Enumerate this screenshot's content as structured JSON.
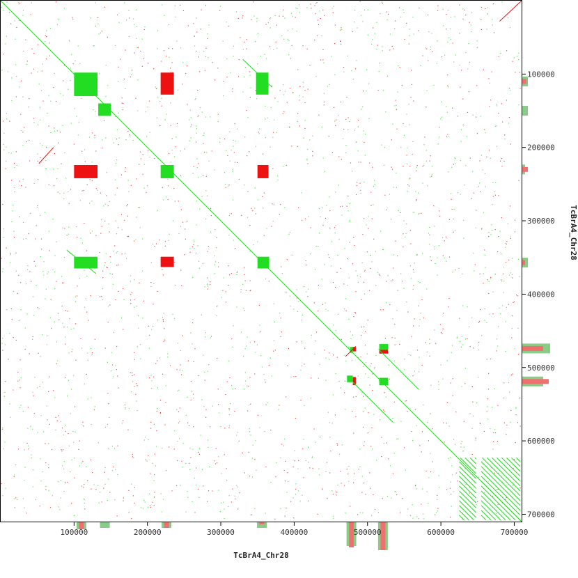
{
  "chart_data": {
    "type": "scatter",
    "title": "",
    "xlabel": "TcBrA4_Chr28",
    "ylabel": "TcBrA4_Chr28",
    "xlim": [
      0,
      710000
    ],
    "ylim": [
      0,
      710000
    ],
    "y_inverted": true,
    "x_ticks": [
      100000,
      200000,
      300000,
      400000,
      500000,
      600000,
      700000
    ],
    "y_ticks": [
      100000,
      200000,
      300000,
      400000,
      500000,
      600000,
      700000
    ],
    "x_tick_labels": [
      "100000",
      "200000",
      "300000",
      "400000",
      "500000",
      "600000",
      "700000"
    ],
    "y_tick_labels": [
      "100000",
      "200000",
      "300000",
      "400000",
      "500000",
      "600000",
      "700000"
    ],
    "grid": false,
    "legend": "none",
    "colors": {
      "forward": "#22dd22",
      "reverse": "#ee1111",
      "forward_light": "#88cc88",
      "reverse_light": "#f07070",
      "axis": "#000000"
    },
    "series": [
      {
        "direction": "forward",
        "diagonal_lines": [
          {
            "x": [
              0,
              710000
            ],
            "y": [
              0,
              710000
            ]
          },
          {
            "x": [
              90000,
              130000
            ],
            "y": [
              340000,
              372000
            ]
          },
          {
            "x": [
              330000,
              370000
            ],
            "y": [
              80000,
              118000
            ]
          },
          {
            "x": [
              515000,
              570000
            ],
            "y": [
              475000,
              530000
            ]
          },
          {
            "x": [
              480000,
              535000
            ],
            "y": [
              520000,
              575000
            ]
          }
        ],
        "blocks": [
          {
            "x": [
              100000,
              132000
            ],
            "y": [
              98000,
              130000
            ]
          },
          {
            "x": [
              133000,
              150000
            ],
            "y": [
              140000,
              157000
            ]
          },
          {
            "x": [
              218000,
              236000
            ],
            "y": [
              224000,
              242000
            ]
          },
          {
            "x": [
              348000,
              365000
            ],
            "y": [
              98000,
              128000
            ]
          },
          {
            "x": [
              100000,
              132000
            ],
            "y": [
              349000,
              365000
            ]
          },
          {
            "x": [
              350000,
              366000
            ],
            "y": [
              349000,
              365000
            ]
          },
          {
            "x": [
              516000,
              528000
            ],
            "y": [
              468000,
              476000
            ]
          },
          {
            "x": [
              472000,
              480000
            ],
            "y": [
              511000,
              520000
            ]
          },
          {
            "x": [
              516000,
              528000
            ],
            "y": [
              514000,
              524000
            ]
          },
          {
            "x": [
              476000,
              480000
            ],
            "y": [
              472000,
              480000
            ]
          }
        ],
        "hatched_regions": [
          {
            "x": [
              625000,
              648000
            ],
            "y": [
              623000,
              708000
            ]
          },
          {
            "x": [
              655000,
              708000
            ],
            "y": [
              623000,
              708000
            ]
          }
        ]
      },
      {
        "direction": "reverse",
        "diagonal_lines": [
          {
            "x": [
              680000,
              710000
            ],
            "y": [
              0,
              28000
            ]
          },
          {
            "x": [
              470000,
              484000
            ],
            "y": [
              471000,
              485000
            ]
          },
          {
            "x": [
              52000,
              72000
            ],
            "y": [
              200000,
              222000
            ]
          }
        ],
        "blocks": [
          {
            "x": [
              218000,
              236000
            ],
            "y": [
              98000,
              128000
            ]
          },
          {
            "x": [
              100000,
              132000
            ],
            "y": [
              224000,
              242000
            ]
          },
          {
            "x": [
              350000,
              365000
            ],
            "y": [
              224000,
              242000
            ]
          },
          {
            "x": [
              218000,
              236000
            ],
            "y": [
              349000,
              363000
            ]
          },
          {
            "x": [
              480000,
              484000
            ],
            "y": [
              472000,
              478000
            ]
          },
          {
            "x": [
              516000,
              528000
            ],
            "y": [
              476000,
              481000
            ]
          },
          {
            "x": [
              480000,
              484000
            ],
            "y": [
              513000,
              524000
            ]
          }
        ]
      }
    ],
    "marginal_histograms": {
      "right": [
        {
          "y": 110000,
          "forward": 8,
          "reverse": 6
        },
        {
          "y": 150000,
          "forward": 8,
          "reverse": 0
        },
        {
          "y": 230000,
          "forward": 4,
          "reverse": 8
        },
        {
          "y": 357000,
          "forward": 8,
          "reverse": 4
        },
        {
          "y": 474000,
          "forward": 40,
          "reverse": 30
        },
        {
          "y": 519000,
          "forward": 30,
          "reverse": 38
        }
      ],
      "bottom": [
        {
          "x": 110000,
          "forward": 10,
          "reverse": 10
        },
        {
          "x": 142000,
          "forward": 8,
          "reverse": 0
        },
        {
          "x": 226000,
          "forward": 8,
          "reverse": 8
        },
        {
          "x": 356000,
          "forward": 8,
          "reverse": 3
        },
        {
          "x": 478000,
          "forward": 34,
          "reverse": 36
        },
        {
          "x": 521000,
          "forward": 40,
          "reverse": 40
        }
      ]
    }
  }
}
